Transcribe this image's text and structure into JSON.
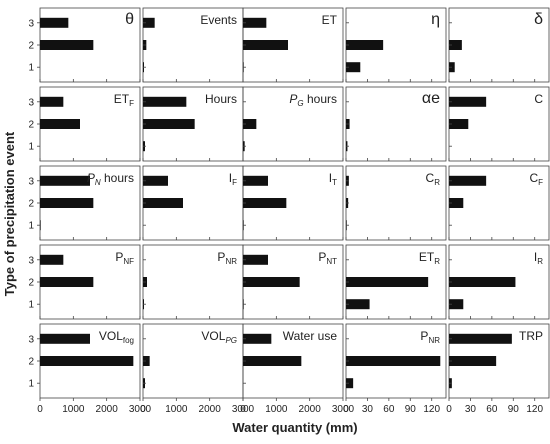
{
  "figure": {
    "xlabel": "Water quantity (mm)",
    "ylabel": "Type of precipitation event"
  },
  "chart_data": {
    "type": "bar",
    "orientation": "horizontal",
    "categories": [
      "1",
      "2",
      "3"
    ],
    "panels": [
      {
        "row": 0,
        "col": 0,
        "title": "θ",
        "sub": "",
        "italic": false,
        "xlim": [
          0,
          3000
        ],
        "values": [
          0,
          1600,
          850
        ]
      },
      {
        "row": 0,
        "col": 1,
        "title": "Events",
        "sub": "",
        "italic": false,
        "xlim": [
          0,
          3000
        ],
        "values": [
          30,
          100,
          350
        ]
      },
      {
        "row": 0,
        "col": 2,
        "title": "ET",
        "sub": "",
        "italic": false,
        "xlim": [
          0,
          3000
        ],
        "values": [
          20,
          1350,
          700
        ]
      },
      {
        "row": 0,
        "col": 3,
        "title": "η",
        "sub": "",
        "italic": false,
        "xlim": [
          0,
          140
        ],
        "values": [
          20,
          52,
          0
        ]
      },
      {
        "row": 0,
        "col": 4,
        "title": "δ",
        "sub": "",
        "italic": false,
        "xlim": [
          0,
          140
        ],
        "values": [
          8,
          18,
          0
        ]
      },
      {
        "row": 1,
        "col": 0,
        "title": "ET",
        "sub": "F",
        "italic": false,
        "xlim": [
          0,
          3000
        ],
        "values": [
          0,
          1200,
          700
        ]
      },
      {
        "row": 1,
        "col": 1,
        "title": "Hours",
        "sub": "",
        "italic": false,
        "xlim": [
          0,
          3000
        ],
        "values": [
          60,
          1550,
          1300
        ]
      },
      {
        "row": 1,
        "col": 2,
        "title": "P",
        "sub": "G",
        "tail": " hours",
        "italic": true,
        "xlim": [
          0,
          3000
        ],
        "values": [
          50,
          400,
          0
        ]
      },
      {
        "row": 1,
        "col": 3,
        "title": "αe",
        "sub": "",
        "italic": false,
        "xlim": [
          0,
          140
        ],
        "values": [
          2,
          5,
          0
        ]
      },
      {
        "row": 1,
        "col": 4,
        "title": "C",
        "sub": "",
        "italic": false,
        "xlim": [
          0,
          140
        ],
        "values": [
          0,
          27,
          52
        ]
      },
      {
        "row": 2,
        "col": 0,
        "title": "P",
        "sub": "N",
        "tail": " hours",
        "italic": true,
        "xlim": [
          0,
          3000
        ],
        "values": [
          20,
          1600,
          1500
        ]
      },
      {
        "row": 2,
        "col": 1,
        "title": "I",
        "sub": "F",
        "italic": false,
        "xlim": [
          0,
          3000
        ],
        "values": [
          0,
          1200,
          750
        ]
      },
      {
        "row": 2,
        "col": 2,
        "title": "I",
        "sub": "T",
        "italic": false,
        "xlim": [
          0,
          3000
        ],
        "values": [
          20,
          1300,
          750
        ]
      },
      {
        "row": 2,
        "col": 3,
        "title": "C",
        "sub": "R",
        "italic": false,
        "xlim": [
          0,
          140
        ],
        "values": [
          1,
          3,
          4
        ]
      },
      {
        "row": 2,
        "col": 4,
        "title": "C",
        "sub": "F",
        "italic": false,
        "xlim": [
          0,
          140
        ],
        "values": [
          0,
          20,
          52
        ]
      },
      {
        "row": 3,
        "col": 0,
        "title": "P",
        "sub": "NF",
        "italic": false,
        "xlim": [
          0,
          3000
        ],
        "values": [
          0,
          1600,
          700
        ]
      },
      {
        "row": 3,
        "col": 1,
        "title": "P",
        "sub": "NR",
        "italic": false,
        "xlim": [
          0,
          3000
        ],
        "values": [
          30,
          120,
          0
        ]
      },
      {
        "row": 3,
        "col": 2,
        "title": "P",
        "sub": "NT",
        "italic": false,
        "xlim": [
          0,
          3000
        ],
        "values": [
          20,
          1700,
          750
        ]
      },
      {
        "row": 3,
        "col": 3,
        "title": "ET",
        "sub": "R",
        "italic": false,
        "xlim": [
          0,
          140
        ],
        "values": [
          33,
          115,
          0
        ]
      },
      {
        "row": 3,
        "col": 4,
        "title": "I",
        "sub": "R",
        "italic": false,
        "xlim": [
          0,
          140
        ],
        "values": [
          20,
          93,
          0
        ]
      },
      {
        "row": 4,
        "col": 0,
        "title": "VOL",
        "sub": "fog",
        "italic": false,
        "xlim": [
          0,
          3000
        ],
        "values": [
          0,
          2800,
          1500
        ]
      },
      {
        "row": 4,
        "col": 1,
        "title": "VOL",
        "sub": "PG",
        "italic": false,
        "xlim": [
          0,
          3000
        ],
        "values": [
          60,
          200,
          0
        ]
      },
      {
        "row": 4,
        "col": 2,
        "title": "Water use",
        "sub": "",
        "italic": false,
        "xlim": [
          0,
          3000
        ],
        "values": [
          0,
          1750,
          850
        ]
      },
      {
        "row": 4,
        "col": 3,
        "title": "P",
        "sub": "NR",
        "italic": false,
        "xlim": [
          0,
          140
        ],
        "values": [
          10,
          132,
          0
        ]
      },
      {
        "row": 4,
        "col": 4,
        "title": "TRP",
        "sub": "",
        "italic": false,
        "xlim": [
          0,
          140
        ],
        "values": [
          4,
          66,
          88
        ]
      }
    ],
    "y_ticks": [
      "1",
      "2",
      "3"
    ],
    "x_ticks_wide": [
      "0",
      "1000",
      "2000",
      "3000"
    ],
    "x_ticks_narrow": [
      "0",
      "30",
      "60",
      "90",
      "120",
      "150"
    ]
  }
}
